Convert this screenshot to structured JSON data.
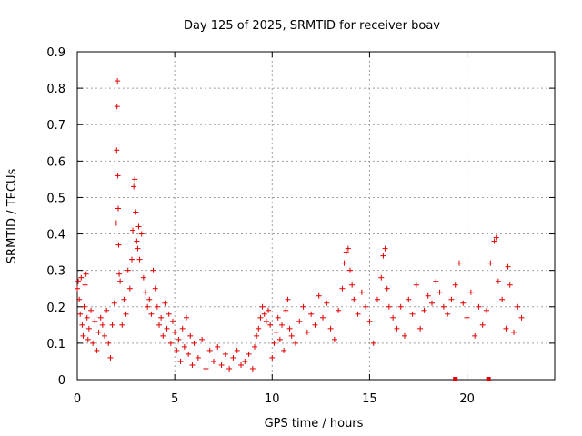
{
  "chart_data": {
    "type": "scatter",
    "title": "Day 125 of 2025, SRMTID for receiver boav",
    "xlabel": "GPS time / hours",
    "ylabel": "SRMTID / TECUs",
    "xlim": [
      0,
      24.5
    ],
    "ylim": [
      0,
      0.9
    ],
    "xticks": [
      0,
      5,
      10,
      15,
      20
    ],
    "yticks": [
      0,
      0.1,
      0.2,
      0.3,
      0.4,
      0.5,
      0.6,
      0.7,
      0.8,
      0.9
    ],
    "xtick_labels": [
      "0",
      "5",
      "10",
      "15",
      "20"
    ],
    "ytick_labels": [
      "0",
      "0.1",
      "0.2",
      "0.3",
      "0.4",
      "0.5",
      "0.6",
      "0.7",
      "0.8",
      "0.9"
    ],
    "grid": true,
    "marker": "plus",
    "color": "#e00000",
    "series": [
      {
        "name": "SRMTID",
        "points": [
          [
            0.0,
            0.25
          ],
          [
            0.05,
            0.27
          ],
          [
            0.1,
            0.22
          ],
          [
            0.15,
            0.18
          ],
          [
            0.2,
            0.28
          ],
          [
            0.25,
            0.15
          ],
          [
            0.3,
            0.12
          ],
          [
            0.35,
            0.2
          ],
          [
            0.4,
            0.26
          ],
          [
            0.45,
            0.29
          ],
          [
            0.5,
            0.17
          ],
          [
            0.55,
            0.11
          ],
          [
            0.6,
            0.14
          ],
          [
            0.7,
            0.19
          ],
          [
            0.8,
            0.1
          ],
          [
            0.9,
            0.16
          ],
          [
            1.0,
            0.08
          ],
          [
            1.1,
            0.13
          ],
          [
            1.2,
            0.17
          ],
          [
            1.3,
            0.15
          ],
          [
            1.4,
            0.12
          ],
          [
            1.5,
            0.19
          ],
          [
            1.6,
            0.1
          ],
          [
            1.7,
            0.06
          ],
          [
            1.8,
            0.15
          ],
          [
            1.9,
            0.21
          ],
          [
            2.0,
            0.43
          ],
          [
            2.02,
            0.63
          ],
          [
            2.04,
            0.75
          ],
          [
            2.06,
            0.82
          ],
          [
            2.08,
            0.56
          ],
          [
            2.1,
            0.47
          ],
          [
            2.12,
            0.37
          ],
          [
            2.15,
            0.29
          ],
          [
            2.2,
            0.27
          ],
          [
            2.3,
            0.15
          ],
          [
            2.4,
            0.22
          ],
          [
            2.5,
            0.18
          ],
          [
            2.6,
            0.3
          ],
          [
            2.7,
            0.25
          ],
          [
            2.8,
            0.33
          ],
          [
            2.85,
            0.41
          ],
          [
            2.9,
            0.53
          ],
          [
            2.95,
            0.55
          ],
          [
            3.0,
            0.46
          ],
          [
            3.05,
            0.38
          ],
          [
            3.1,
            0.36
          ],
          [
            3.15,
            0.42
          ],
          [
            3.2,
            0.33
          ],
          [
            3.3,
            0.4
          ],
          [
            3.4,
            0.28
          ],
          [
            3.5,
            0.24
          ],
          [
            3.6,
            0.2
          ],
          [
            3.7,
            0.22
          ],
          [
            3.8,
            0.18
          ],
          [
            3.9,
            0.3
          ],
          [
            4.0,
            0.25
          ],
          [
            4.1,
            0.2
          ],
          [
            4.2,
            0.15
          ],
          [
            4.3,
            0.17
          ],
          [
            4.4,
            0.12
          ],
          [
            4.5,
            0.21
          ],
          [
            4.6,
            0.14
          ],
          [
            4.7,
            0.18
          ],
          [
            4.8,
            0.1
          ],
          [
            4.9,
            0.16
          ],
          [
            5.0,
            0.13
          ],
          [
            5.1,
            0.08
          ],
          [
            5.2,
            0.11
          ],
          [
            5.3,
            0.05
          ],
          [
            5.4,
            0.14
          ],
          [
            5.5,
            0.09
          ],
          [
            5.6,
            0.17
          ],
          [
            5.7,
            0.07
          ],
          [
            5.8,
            0.12
          ],
          [
            5.9,
            0.04
          ],
          [
            6.0,
            0.1
          ],
          [
            6.2,
            0.06
          ],
          [
            6.4,
            0.11
          ],
          [
            6.6,
            0.03
          ],
          [
            6.8,
            0.08
          ],
          [
            7.0,
            0.05
          ],
          [
            7.2,
            0.09
          ],
          [
            7.4,
            0.04
          ],
          [
            7.6,
            0.07
          ],
          [
            7.8,
            0.03
          ],
          [
            8.0,
            0.06
          ],
          [
            8.2,
            0.08
          ],
          [
            8.4,
            0.04
          ],
          [
            8.6,
            0.05
          ],
          [
            8.8,
            0.07
          ],
          [
            9.0,
            0.03
          ],
          [
            9.1,
            0.09
          ],
          [
            9.2,
            0.12
          ],
          [
            9.3,
            0.14
          ],
          [
            9.4,
            0.17
          ],
          [
            9.5,
            0.2
          ],
          [
            9.6,
            0.18
          ],
          [
            9.7,
            0.16
          ],
          [
            9.8,
            0.19
          ],
          [
            9.9,
            0.15
          ],
          [
            10.0,
            0.06
          ],
          [
            10.1,
            0.1
          ],
          [
            10.2,
            0.13
          ],
          [
            10.3,
            0.17
          ],
          [
            10.4,
            0.11
          ],
          [
            10.5,
            0.15
          ],
          [
            10.6,
            0.08
          ],
          [
            10.7,
            0.19
          ],
          [
            10.8,
            0.22
          ],
          [
            10.9,
            0.14
          ],
          [
            11.0,
            0.12
          ],
          [
            11.2,
            0.1
          ],
          [
            11.4,
            0.16
          ],
          [
            11.6,
            0.2
          ],
          [
            11.8,
            0.13
          ],
          [
            12.0,
            0.18
          ],
          [
            12.2,
            0.15
          ],
          [
            12.4,
            0.23
          ],
          [
            12.6,
            0.17
          ],
          [
            12.8,
            0.21
          ],
          [
            13.0,
            0.14
          ],
          [
            13.2,
            0.11
          ],
          [
            13.4,
            0.19
          ],
          [
            13.6,
            0.25
          ],
          [
            13.7,
            0.32
          ],
          [
            13.8,
            0.35
          ],
          [
            13.9,
            0.36
          ],
          [
            14.0,
            0.3
          ],
          [
            14.1,
            0.26
          ],
          [
            14.2,
            0.22
          ],
          [
            14.4,
            0.18
          ],
          [
            14.6,
            0.24
          ],
          [
            14.8,
            0.2
          ],
          [
            15.0,
            0.16
          ],
          [
            15.2,
            0.1
          ],
          [
            15.4,
            0.22
          ],
          [
            15.6,
            0.28
          ],
          [
            15.7,
            0.34
          ],
          [
            15.8,
            0.36
          ],
          [
            15.9,
            0.25
          ],
          [
            16.0,
            0.2
          ],
          [
            16.2,
            0.17
          ],
          [
            16.4,
            0.14
          ],
          [
            16.6,
            0.2
          ],
          [
            16.8,
            0.12
          ],
          [
            17.0,
            0.22
          ],
          [
            17.2,
            0.18
          ],
          [
            17.4,
            0.26
          ],
          [
            17.6,
            0.14
          ],
          [
            17.8,
            0.19
          ],
          [
            18.0,
            0.23
          ],
          [
            18.2,
            0.21
          ],
          [
            18.4,
            0.27
          ],
          [
            18.6,
            0.24
          ],
          [
            18.8,
            0.2
          ],
          [
            19.0,
            0.18
          ],
          [
            19.2,
            0.22
          ],
          [
            19.4,
            0.26
          ],
          [
            19.6,
            0.32
          ],
          [
            19.8,
            0.21
          ],
          [
            20.0,
            0.17
          ],
          [
            20.2,
            0.24
          ],
          [
            20.4,
            0.12
          ],
          [
            20.6,
            0.2
          ],
          [
            20.8,
            0.15
          ],
          [
            21.0,
            0.19
          ],
          [
            21.2,
            0.32
          ],
          [
            21.4,
            0.38
          ],
          [
            21.5,
            0.39
          ],
          [
            21.6,
            0.27
          ],
          [
            21.8,
            0.22
          ],
          [
            22.0,
            0.14
          ],
          [
            22.1,
            0.31
          ],
          [
            22.2,
            0.26
          ],
          [
            22.4,
            0.13
          ],
          [
            22.6,
            0.2
          ],
          [
            22.8,
            0.17
          ]
        ]
      }
    ],
    "square_markers": [
      [
        19.4,
        0.0
      ],
      [
        21.1,
        0.0
      ]
    ]
  }
}
